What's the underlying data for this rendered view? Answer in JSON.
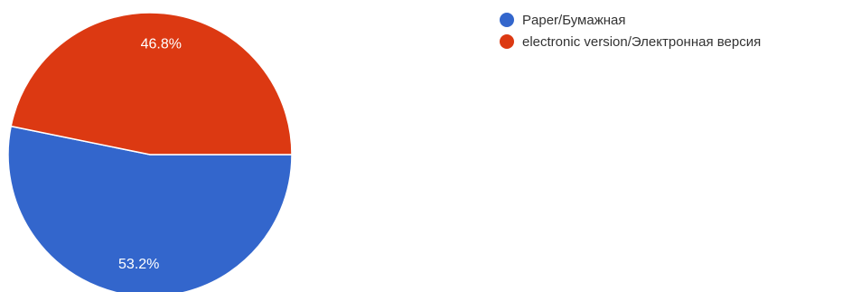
{
  "chart_data": {
    "type": "pie",
    "title": "",
    "legend_position": "right",
    "slices": [
      {
        "label": "Paper/Бумажная",
        "value": 53.2,
        "display": "53.2%",
        "color": "#3366cc"
      },
      {
        "label": "electronic version/Электронная версия",
        "value": 46.8,
        "display": "46.8%",
        "color": "#dc3912"
      }
    ]
  }
}
